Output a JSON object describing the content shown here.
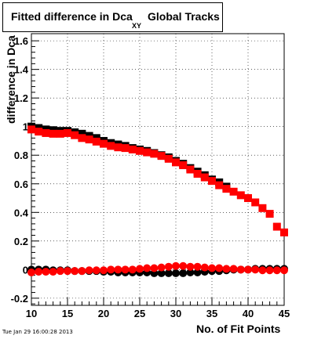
{
  "title_main": "Fitted difference in Dca",
  "title_sub": "XY",
  "title_tail": "Global Tracks",
  "timestamp": "Tue Jan 29 16:00:28 2013",
  "chart_data": {
    "type": "scatter",
    "title": "Fitted difference in Dca XY Global Tracks",
    "xlabel": "No. of Fit Points",
    "ylabel": "difference in Dca",
    "xlim": [
      10,
      45
    ],
    "ylim": [
      -0.25,
      1.65
    ],
    "xticks": [
      "10",
      "15",
      "20",
      "25",
      "30",
      "35",
      "40",
      "45"
    ],
    "yticks": [
      "-0.2",
      "0",
      "0.2",
      "0.4",
      "0.6",
      "0.8",
      "1",
      "1.2",
      "1.4",
      "1.6"
    ],
    "grid": true,
    "series": [
      {
        "color": "#000000",
        "marker": "square",
        "x": [
          10,
          11,
          12,
          13,
          14,
          15,
          16,
          17,
          18,
          19,
          20,
          21,
          22,
          23,
          24,
          25,
          26,
          27,
          28,
          29,
          30,
          31,
          32,
          33,
          34,
          35,
          36,
          37
        ],
        "y": [
          1.0,
          0.99,
          0.98,
          0.975,
          0.97,
          0.97,
          0.96,
          0.95,
          0.935,
          0.92,
          0.9,
          0.885,
          0.875,
          0.865,
          0.85,
          0.84,
          0.83,
          0.815,
          0.8,
          0.785,
          0.76,
          0.74,
          0.71,
          0.685,
          0.66,
          0.63,
          0.61,
          0.58
        ]
      },
      {
        "color": "#ff0000",
        "marker": "square",
        "x": [
          10,
          11,
          12,
          13,
          14,
          15,
          16,
          17,
          18,
          19,
          20,
          21,
          22,
          23,
          24,
          25,
          26,
          27,
          28,
          29,
          30,
          31,
          32,
          33,
          34,
          35,
          36,
          37,
          38,
          39,
          40,
          41,
          42,
          43,
          44,
          45
        ],
        "y": [
          0.98,
          0.965,
          0.955,
          0.95,
          0.95,
          0.955,
          0.94,
          0.92,
          0.91,
          0.895,
          0.88,
          0.865,
          0.855,
          0.85,
          0.84,
          0.83,
          0.82,
          0.81,
          0.795,
          0.775,
          0.75,
          0.73,
          0.7,
          0.67,
          0.645,
          0.62,
          0.59,
          0.565,
          0.545,
          0.52,
          0.5,
          0.47,
          0.43,
          0.39,
          0.3,
          0.26
        ]
      },
      {
        "color": "#000000",
        "marker": "circle",
        "x": [
          10,
          11,
          12,
          13,
          14,
          15,
          16,
          17,
          18,
          19,
          20,
          21,
          22,
          23,
          24,
          25,
          26,
          27,
          28,
          29,
          30,
          31,
          32,
          33,
          34,
          35,
          36,
          37,
          38,
          39,
          40,
          41,
          42,
          43,
          44,
          45
        ],
        "y": [
          0.0,
          0.0,
          0.0,
          -0.005,
          -0.005,
          -0.005,
          -0.01,
          -0.01,
          -0.01,
          -0.01,
          -0.015,
          -0.015,
          -0.02,
          -0.02,
          -0.02,
          -0.02,
          -0.02,
          -0.025,
          -0.025,
          -0.025,
          -0.025,
          -0.025,
          -0.02,
          -0.02,
          -0.015,
          -0.01,
          -0.01,
          -0.005,
          0.0,
          0.0,
          0.0,
          0.005,
          0.005,
          0.005,
          0.005,
          0.005
        ]
      },
      {
        "color": "#ff0000",
        "marker": "circle",
        "x": [
          10,
          11,
          12,
          13,
          14,
          15,
          16,
          17,
          18,
          19,
          20,
          21,
          22,
          23,
          24,
          25,
          26,
          27,
          28,
          29,
          30,
          31,
          32,
          33,
          34,
          35,
          36,
          37,
          38,
          39,
          40,
          41,
          42,
          43,
          44,
          45
        ],
        "y": [
          -0.02,
          -0.015,
          -0.015,
          -0.015,
          -0.01,
          -0.01,
          -0.01,
          -0.01,
          -0.005,
          -0.005,
          -0.005,
          0.0,
          0.0,
          0.0,
          0.0,
          0.005,
          0.01,
          0.01,
          0.015,
          0.02,
          0.025,
          0.025,
          0.02,
          0.02,
          0.015,
          0.01,
          0.01,
          0.005,
          0.005,
          0.0,
          0.0,
          0.0,
          -0.005,
          -0.005,
          -0.005,
          -0.005
        ]
      }
    ]
  }
}
